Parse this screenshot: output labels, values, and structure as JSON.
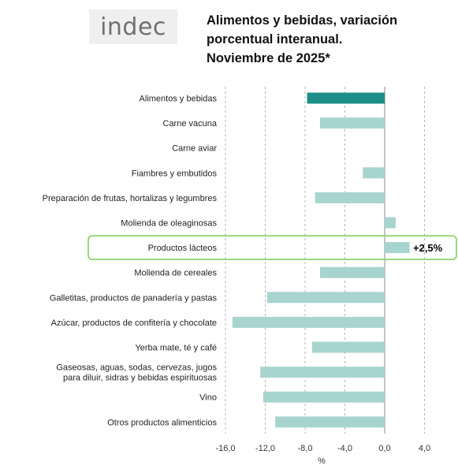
{
  "logo": {
    "text": "indec"
  },
  "header": {
    "title_line1": "Alimentos y bebidas, variación",
    "title_line2": "porcentual interanual.",
    "title_line3": "Noviembre de 2025*"
  },
  "highlight": {
    "category": "Productos lácteos",
    "label": "+2,5%",
    "color": "#8fd36a"
  },
  "colors": {
    "primary_bar": "#1b8f87",
    "bar": "#a8d4cf",
    "grid": "#b5b5b5"
  },
  "chart_data": {
    "type": "bar",
    "orientation": "horizontal",
    "title": "Alimentos y bebidas, variación porcentual interanual. Noviembre de 2025*",
    "categories": [
      "Alimentos y bebidas",
      "Carne vacuna",
      "Carne aviar",
      "Fiambres y embutidos",
      "Preparación de frutas, hortalizas y legumbres",
      "Molienda de oleaginosas",
      "Productos lácteos",
      "Molienda de cereales",
      "Galletitas, productos de panadería y pastas",
      "Azúcar, productos de confitería y chocolate",
      "Yerba mate, té y café",
      "Gaseosas, aguas, sodas, cervezas, jugos\npara diluir, sidras y bebidas espirituosas",
      "Vino",
      "Otros productos alimenticios"
    ],
    "values": [
      -7.8,
      -6.5,
      0.0,
      -2.2,
      -7.0,
      1.1,
      2.5,
      -6.5,
      -11.8,
      -15.3,
      -7.3,
      -12.5,
      -12.2,
      -11.0
    ],
    "xlabel": "%",
    "xlim": [
      -17.0,
      5.0
    ],
    "xticks": [
      -16,
      -12,
      -8,
      -4,
      0,
      4
    ],
    "xtick_labels": [
      "-16,0",
      "-12,0",
      "-8,0",
      "-4,0",
      "0,0",
      "4,0"
    ],
    "grid": true
  }
}
